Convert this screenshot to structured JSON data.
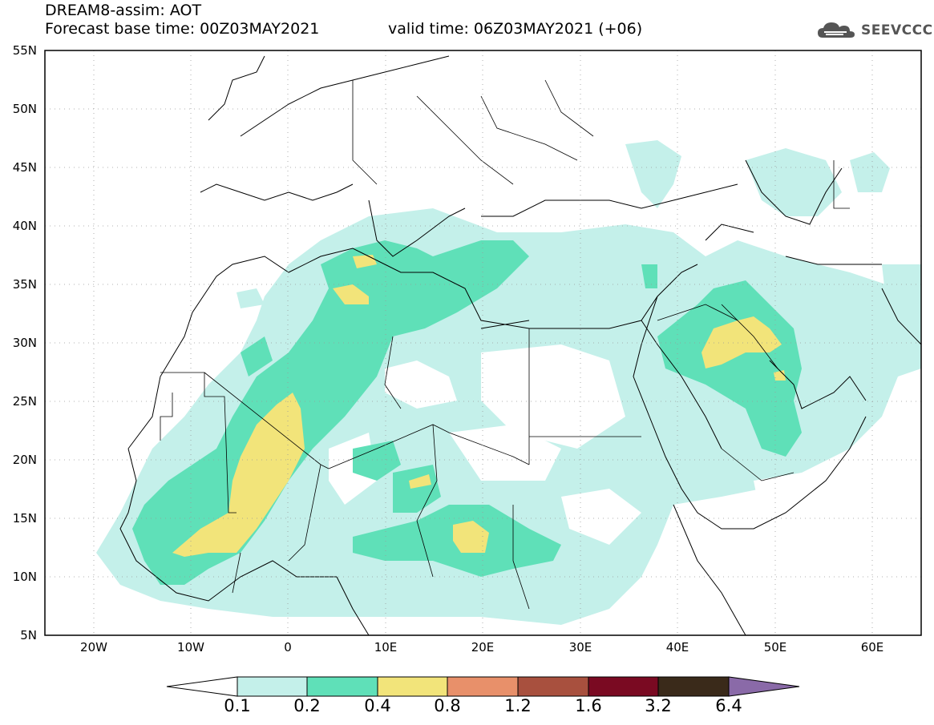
{
  "header": {
    "title": "DREAM8-assim: AOT",
    "base_time": "Forecast base time: 00Z03MAY2021",
    "valid_time": "valid time: 06Z03MAY2021 (+06)"
  },
  "logo": {
    "text": "SEEVCCC",
    "icon": "cloud-icon"
  },
  "map": {
    "lat_labels": [
      "55N",
      "50N",
      "45N",
      "40N",
      "35N",
      "30N",
      "25N",
      "20N",
      "15N",
      "10N",
      "5N"
    ],
    "lon_labels": [
      "20W",
      "10W",
      "0",
      "10E",
      "20E",
      "30E",
      "40E",
      "50E",
      "60E"
    ]
  },
  "colorbar": {
    "labels": [
      "0.1",
      "0.2",
      "0.4",
      "0.8",
      "1.2",
      "1.6",
      "3.2",
      "6.4"
    ],
    "colors": [
      "#ffffff",
      "#c4f0ea",
      "#5fe0b8",
      "#f2e47a",
      "#e8906a",
      "#a8503e",
      "#7a0a22",
      "#3a2a1a",
      "#8a6aa8"
    ]
  }
}
